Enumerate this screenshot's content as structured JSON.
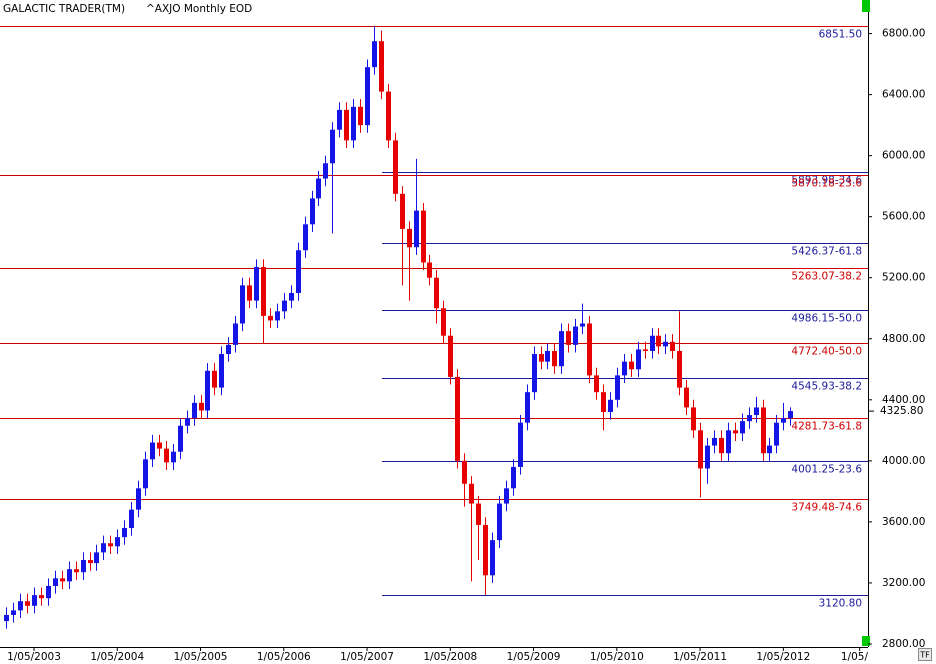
{
  "chart_data": {
    "type": "candlestick",
    "title": "GALACTIC TRADER(TM)",
    "subtitle": "^AXJO Monthly EOD",
    "up_color": "#1414e6",
    "down_color": "#e60000",
    "open": [
      2950,
      2990,
      3020,
      3080,
      3050,
      3120,
      3100,
      3180,
      3230,
      3210,
      3290,
      3270,
      3350,
      3330,
      3400,
      3460,
      3440,
      3500,
      3560,
      3680,
      3820,
      4010,
      4120,
      4080,
      3990,
      4060,
      4230,
      4280,
      4380,
      4330,
      4590,
      4480,
      4700,
      4760,
      4900,
      5150,
      5050,
      5270,
      4950,
      4920,
      4980,
      5050,
      5100,
      5380,
      5550,
      5720,
      5850,
      5950,
      6170,
      6300,
      6100,
      6320,
      6200,
      6580,
      6750,
      6420,
      6100,
      5750,
      5520,
      5400,
      5640,
      5300,
      5200,
      5000,
      4820,
      4550,
      4000,
      3850,
      3720,
      3580,
      3250,
      3480,
      3720,
      3820,
      3960,
      4250,
      4450,
      4700,
      4650,
      4720,
      4620,
      4850,
      4760,
      4880,
      4900,
      4560,
      4450,
      4320,
      4400,
      4560,
      4650,
      4600,
      4730,
      4720,
      4820,
      4750,
      4780,
      4720,
      4480,
      4350,
      4200,
      3950,
      4100,
      4150,
      4050,
      4200,
      4180,
      4260,
      4300,
      4350,
      4050,
      4100,
      4250,
      4280
    ],
    "high": [
      3040,
      3070,
      3130,
      3130,
      3170,
      3170,
      3230,
      3280,
      3280,
      3340,
      3340,
      3400,
      3400,
      3450,
      3510,
      3510,
      3550,
      3610,
      3730,
      3870,
      4060,
      4170,
      4170,
      4130,
      4110,
      4280,
      4330,
      4430,
      4430,
      4640,
      4640,
      4750,
      4810,
      4950,
      5200,
      5200,
      5320,
      5320,
      5000,
      5030,
      5100,
      5150,
      5430,
      5600,
      5770,
      5900,
      6000,
      6220,
      6350,
      6350,
      6370,
      6370,
      6630,
      6851.5,
      6820,
      6470,
      6150,
      5800,
      5570,
      5980,
      5690,
      5350,
      5250,
      5050,
      4870,
      4600,
      4050,
      3900,
      3770,
      3630,
      3530,
      3770,
      3870,
      4010,
      4300,
      4500,
      4750,
      4750,
      4770,
      4770,
      4900,
      4900,
      4930,
      5030,
      4950,
      4610,
      4500,
      4450,
      4610,
      4700,
      4700,
      4780,
      4780,
      4870,
      4870,
      4830,
      4830,
      4980,
      4530,
      4400,
      4250,
      4150,
      4200,
      4200,
      4250,
      4250,
      4310,
      4350,
      4420,
      4400,
      4150,
      4300,
      4380,
      4350
    ],
    "low": [
      2900,
      2940,
      2970,
      3000,
      3000,
      3050,
      3050,
      3130,
      3160,
      3160,
      3220,
      3220,
      3280,
      3280,
      3350,
      3390,
      3390,
      3450,
      3510,
      3630,
      3770,
      3960,
      4030,
      3940,
      3940,
      4010,
      4180,
      4230,
      4280,
      4280,
      4430,
      4430,
      4650,
      4710,
      4850,
      5000,
      5000,
      4770,
      4870,
      4870,
      4930,
      5000,
      5050,
      5330,
      5500,
      5670,
      5800,
      5490,
      6120,
      6050,
      6050,
      6150,
      6150,
      6530,
      6370,
      6050,
      5700,
      5150,
      5050,
      5350,
      5250,
      5150,
      4900,
      4770,
      4500,
      3950,
      3700,
      3210,
      3350,
      3121,
      3200,
      3430,
      3670,
      3770,
      3910,
      4200,
      4400,
      4600,
      4600,
      4570,
      4570,
      4710,
      4710,
      4830,
      4510,
      4400,
      4200,
      4270,
      4350,
      4510,
      4550,
      4550,
      4670,
      4670,
      4700,
      4700,
      4670,
      4430,
      4300,
      4150,
      3760,
      3850,
      4050,
      4000,
      4000,
      4130,
      4130,
      4210,
      4250,
      4000,
      4000,
      4050,
      4200,
      4230
    ],
    "close": [
      2990,
      3020,
      3080,
      3050,
      3120,
      3100,
      3180,
      3230,
      3210,
      3290,
      3270,
      3350,
      3330,
      3400,
      3460,
      3440,
      3500,
      3560,
      3680,
      3820,
      4010,
      4120,
      4080,
      3990,
      4060,
      4230,
      4280,
      4380,
      4330,
      4590,
      4480,
      4700,
      4760,
      4900,
      5150,
      5050,
      5270,
      4950,
      4920,
      4980,
      5050,
      5100,
      5380,
      5550,
      5720,
      5850,
      5950,
      6170,
      6300,
      6100,
      6320,
      6200,
      6580,
      6750,
      6420,
      6100,
      5750,
      5520,
      5400,
      5640,
      5300,
      5200,
      5000,
      4820,
      4550,
      4000,
      3850,
      3720,
      3580,
      3250,
      3480,
      3720,
      3820,
      3960,
      4250,
      4450,
      4700,
      4650,
      4720,
      4620,
      4850,
      4760,
      4880,
      4900,
      4560,
      4450,
      4320,
      4400,
      4560,
      4650,
      4600,
      4730,
      4720,
      4820,
      4750,
      4780,
      4720,
      4480,
      4350,
      4200,
      3950,
      4100,
      4150,
      4050,
      4200,
      4180,
      4260,
      4300,
      4350,
      4050,
      4100,
      4250,
      4280,
      4326
    ],
    "xlim": [
      -0.9,
      124.2
    ],
    "xticks": [
      {
        "value": 4,
        "label": "1/05/2003"
      },
      {
        "value": 16,
        "label": "1/05/2004"
      },
      {
        "value": 28,
        "label": "1/05/2005"
      },
      {
        "value": 40,
        "label": "1/05/2006"
      },
      {
        "value": 52,
        "label": "1/05/2007"
      },
      {
        "value": 64,
        "label": "1/05/2008"
      },
      {
        "value": 76,
        "label": "1/05/2009"
      },
      {
        "value": 88,
        "label": "1/05/2010"
      },
      {
        "value": 100,
        "label": "1/05/2011"
      },
      {
        "value": 112,
        "label": "1/05/2012"
      },
      {
        "value": 123,
        "label": "1/05/"
      }
    ],
    "ylim": [
      2780,
      7020
    ],
    "yticks": [
      {
        "value": 2800,
        "label": "2800.00"
      },
      {
        "value": 3200,
        "label": "3200.00"
      },
      {
        "value": 3600,
        "label": "3600.00"
      },
      {
        "value": 4000,
        "label": "4000.00"
      },
      {
        "value": 4400,
        "label": "4400.00"
      },
      {
        "value": 4800,
        "label": "4800.00"
      },
      {
        "value": 5200,
        "label": "5200.00"
      },
      {
        "value": 5600,
        "label": "5600.00"
      },
      {
        "value": 6000,
        "label": "6000.00"
      },
      {
        "value": 6400,
        "label": "6400.00"
      },
      {
        "value": 6800,
        "label": "6800.00"
      }
    ],
    "last": {
      "value": 4325.8,
      "label": "4325.80"
    },
    "levels": [
      {
        "value": 6851.5,
        "label": "6851.50",
        "line_color": "#d00000",
        "label_color": "#1a1a9a",
        "span": "full"
      },
      {
        "value": 5893.98,
        "label": "5893.98-34.6",
        "line_color": "#1a1a9a",
        "label_color": "#1a1a9a",
        "span": "from_peak"
      },
      {
        "value": 5870.18,
        "label": "5870.18-23.6",
        "line_color": "#d00000",
        "label_color": "#d00000",
        "span": "full"
      },
      {
        "value": 5426.37,
        "label": "5426.37-61.8",
        "line_color": "#1a1a9a",
        "label_color": "#1a1a9a",
        "span": "from_peak"
      },
      {
        "value": 5263.07,
        "label": "5263.07-38.2",
        "line_color": "#d00000",
        "label_color": "#d00000",
        "span": "full"
      },
      {
        "value": 4986.15,
        "label": "4986.15-50.0",
        "line_color": "#1a1a9a",
        "label_color": "#1a1a9a",
        "span": "from_peak"
      },
      {
        "value": 4772.4,
        "label": "4772.40-50.0",
        "line_color": "#d00000",
        "label_color": "#d00000",
        "span": "full"
      },
      {
        "value": 4545.93,
        "label": "4545.93-38.2",
        "line_color": "#1a1a9a",
        "label_color": "#1a1a9a",
        "span": "from_peak"
      },
      {
        "value": 4281.73,
        "label": "4281.73-61.8",
        "line_color": "#d00000",
        "label_color": "#d00000",
        "span": "full"
      },
      {
        "value": 4001.25,
        "label": "4001.25-23.6",
        "line_color": "#1a1a9a",
        "label_color": "#1a1a9a",
        "span": "from_peak"
      },
      {
        "value": 3749.48,
        "label": "3749.48-74.6",
        "line_color": "#d00000",
        "label_color": "#d00000",
        "span": "full"
      },
      {
        "value": 3120.8,
        "label": "3120.80",
        "line_color": "#1a1a9a",
        "label_color": "#1a1a9a",
        "span": "from_peak"
      }
    ],
    "tf_button": "TF"
  }
}
